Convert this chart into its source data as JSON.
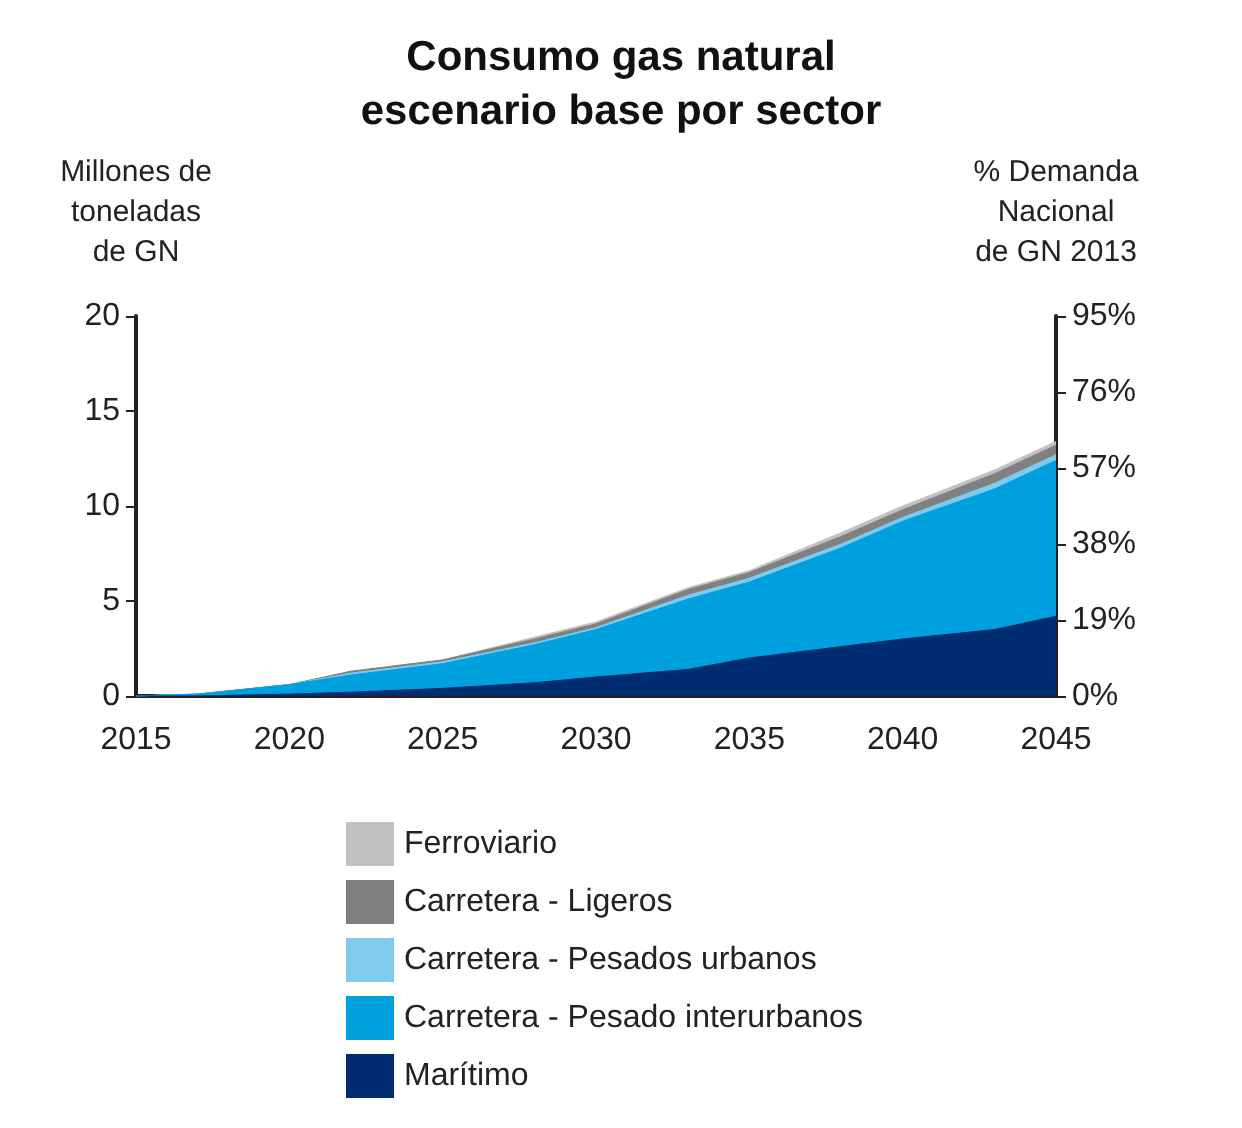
{
  "chart_data": {
    "type": "area",
    "title": "Consumo gas natural\nescenario base por sector",
    "ylabel": "Millones de\ntoneladas\nde GN",
    "y2label": "% Demanda\nNacional\nde GN 2013",
    "x": [
      2015,
      2017,
      2020,
      2022,
      2025,
      2028,
      2030,
      2033,
      2035,
      2038,
      2040,
      2043,
      2045
    ],
    "stacked": true,
    "series": [
      {
        "name": "Marítimo",
        "color": "#002d72",
        "values": [
          0,
          0,
          0.1,
          0.2,
          0.4,
          0.7,
          1.0,
          1.4,
          2.0,
          2.6,
          3.0,
          3.5,
          4.2
        ]
      },
      {
        "name": "Carretera - Pesado interurbanos",
        "color": "#00a0df",
        "values": [
          0,
          0.1,
          0.5,
          0.9,
          1.3,
          2.0,
          2.5,
          3.7,
          4.0,
          5.2,
          6.2,
          7.4,
          8.2
        ]
      },
      {
        "name": "Carretera - Pesados urbanos",
        "color": "#7fcbeb",
        "values": [
          0,
          0,
          0,
          0.1,
          0.1,
          0.1,
          0.1,
          0.2,
          0.2,
          0.2,
          0.2,
          0.3,
          0.3
        ]
      },
      {
        "name": "Carretera - Ligeros",
        "color": "#808080",
        "values": [
          0,
          0,
          0,
          0.1,
          0.1,
          0.2,
          0.2,
          0.3,
          0.3,
          0.4,
          0.4,
          0.5,
          0.5
        ]
      },
      {
        "name": "Ferroviario",
        "color": "#c0c0c0",
        "values": [
          0,
          0,
          0,
          0,
          0,
          0.1,
          0.1,
          0.1,
          0.1,
          0.2,
          0.2,
          0.2,
          0.2
        ]
      }
    ],
    "xlim": [
      2015,
      2045
    ],
    "xticks": [
      2015,
      2020,
      2025,
      2030,
      2035,
      2040,
      2045
    ],
    "ylim": [
      0,
      20
    ],
    "yticks": [
      0,
      5,
      10,
      15,
      20
    ],
    "y2lim": [
      0,
      95
    ],
    "y2ticks": [
      {
        "value": 0,
        "label": "0%"
      },
      {
        "value": 19,
        "label": "19%"
      },
      {
        "value": 38,
        "label": "38%"
      },
      {
        "value": 57,
        "label": "57%"
      },
      {
        "value": 76,
        "label": "76%"
      },
      {
        "value": 95,
        "label": "95%"
      }
    ],
    "grid": false,
    "legend": "bottom",
    "marker": "none"
  }
}
